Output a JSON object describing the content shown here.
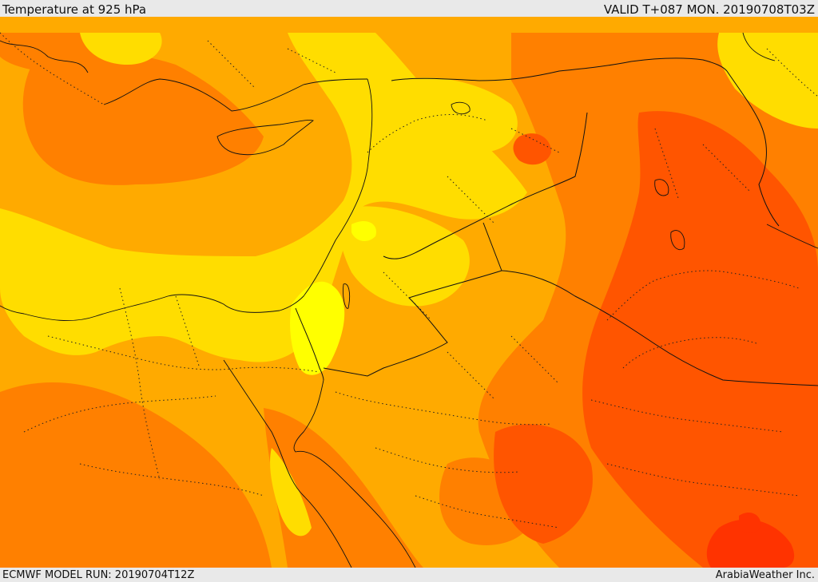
{
  "header": {
    "title": "Temperature at 925 hPa",
    "valid": "VALID T+087 MON. 20190708T03Z"
  },
  "footer": {
    "model_run": "ECMWF MODEL RUN: 20190704T12Z",
    "credit": "ArabiaWeather Inc."
  },
  "colors": {
    "bright_yellow": "#ffff00",
    "yellow": "#ffdd00",
    "light_orange": "#ffaa00",
    "orange": "#ff8000",
    "dark_orange": "#ff5500",
    "red_orange": "#ff3300",
    "border": "#111111"
  }
}
